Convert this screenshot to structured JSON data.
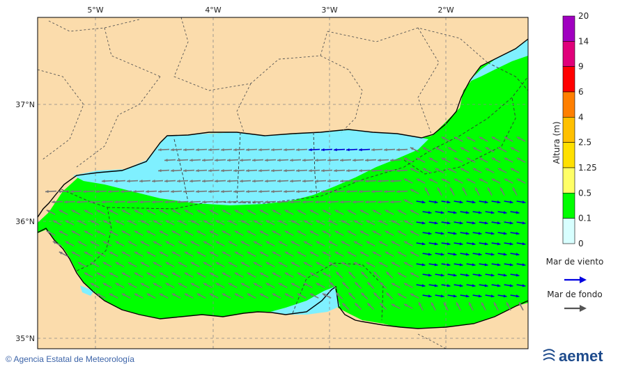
{
  "map": {
    "lon_ticks": [
      "5°W",
      "4°W",
      "3°W",
      "2°W"
    ],
    "lat_ticks": [
      "37°N",
      "36°N",
      "35°N"
    ]
  },
  "legend": {
    "title": "Altura (m)",
    "levels": [
      {
        "label": "20",
        "color": "#a000c0"
      },
      {
        "label": "14",
        "color": "#e0007a"
      },
      {
        "label": "9",
        "color": "#ff0000"
      },
      {
        "label": "6",
        "color": "#ff7f00"
      },
      {
        "label": "4",
        "color": "#ffc000"
      },
      {
        "label": "2.5",
        "color": "#ffe000"
      },
      {
        "label": "1.25",
        "color": "#ffff66"
      },
      {
        "label": "0.5",
        "color": "#00ff00"
      },
      {
        "label": "0.1",
        "color": "#7ff0ff"
      },
      {
        "label": "0",
        "color": "#d8ffff"
      }
    ],
    "wind_sea_label": "Mar de viento",
    "wind_sea_color": "#0000e0",
    "swell_label": "Mar de fondo",
    "swell_color": "#555555"
  },
  "colors": {
    "land": "#fbdcac",
    "sea_zero": "#d8ffff"
  },
  "footer": {
    "credit": "© Agencia Estatal de Meteorología",
    "logo_text": "aemet"
  }
}
